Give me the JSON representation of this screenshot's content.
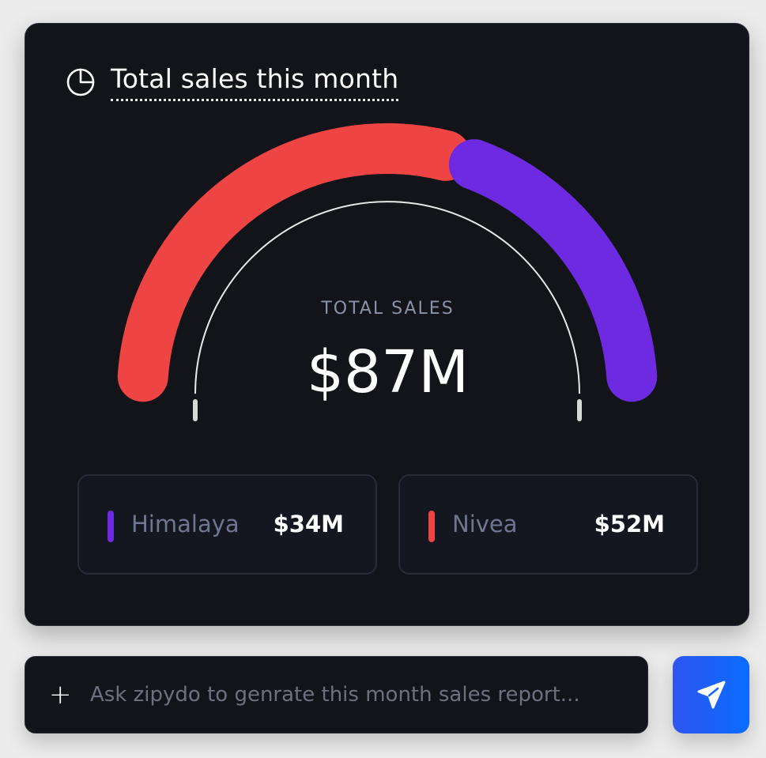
{
  "card": {
    "title": "Total sales this month",
    "title_icon": "pie-chart-icon"
  },
  "gauge": {
    "label": "TOTAL SALES",
    "value": "$87M"
  },
  "chart_data": {
    "type": "gauge",
    "series": [
      {
        "name": "Nivea",
        "value": 52,
        "color": "#ef4444"
      },
      {
        "name": "Himalaya",
        "value": 34,
        "color": "#6d2ae0"
      }
    ]
  },
  "legend": [
    {
      "name": "Himalaya",
      "value": "$34M",
      "color": "#6d2ae0"
    },
    {
      "name": "Nivea",
      "value": "$52M",
      "color": "#ef4444"
    }
  ],
  "prompt": {
    "placeholder": "Ask zipydo to genrate this month sales report...",
    "add_icon": "plus-icon",
    "send_icon": "send-icon",
    "send_color": "#1463ff"
  }
}
